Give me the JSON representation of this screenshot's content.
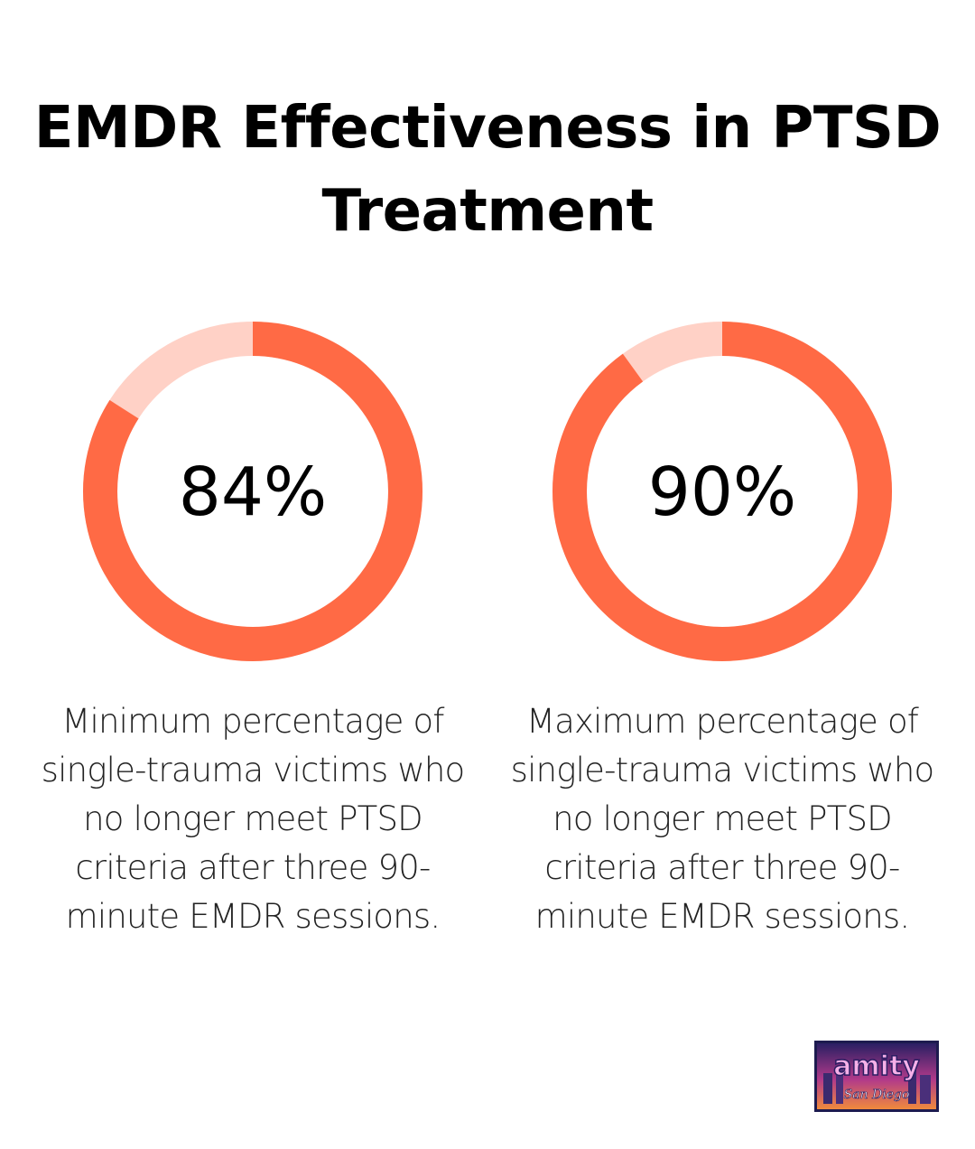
{
  "title": "EMDR Effectiveness in PTSD Treatment",
  "colors": {
    "accent": "#ff6a45",
    "track": "#ffd1c6",
    "text": "#000000"
  },
  "chart_data": [
    {
      "type": "pie",
      "values": [
        84,
        16
      ],
      "value_label": "84%",
      "caption": "Minimum percentage of\nsingle-trauma victims who\nno longer meet PTSD\ncriteria after three 90-\nminute EMDR sessions."
    },
    {
      "type": "pie",
      "values": [
        90,
        10
      ],
      "value_label": "90%",
      "caption": "Maximum percentage of\nsingle-trauma victims who\nno longer meet PTSD\ncriteria after three 90-\nminute EMDR sessions."
    }
  ],
  "logo": {
    "text_main": "amity",
    "text_script": "San Diego"
  }
}
